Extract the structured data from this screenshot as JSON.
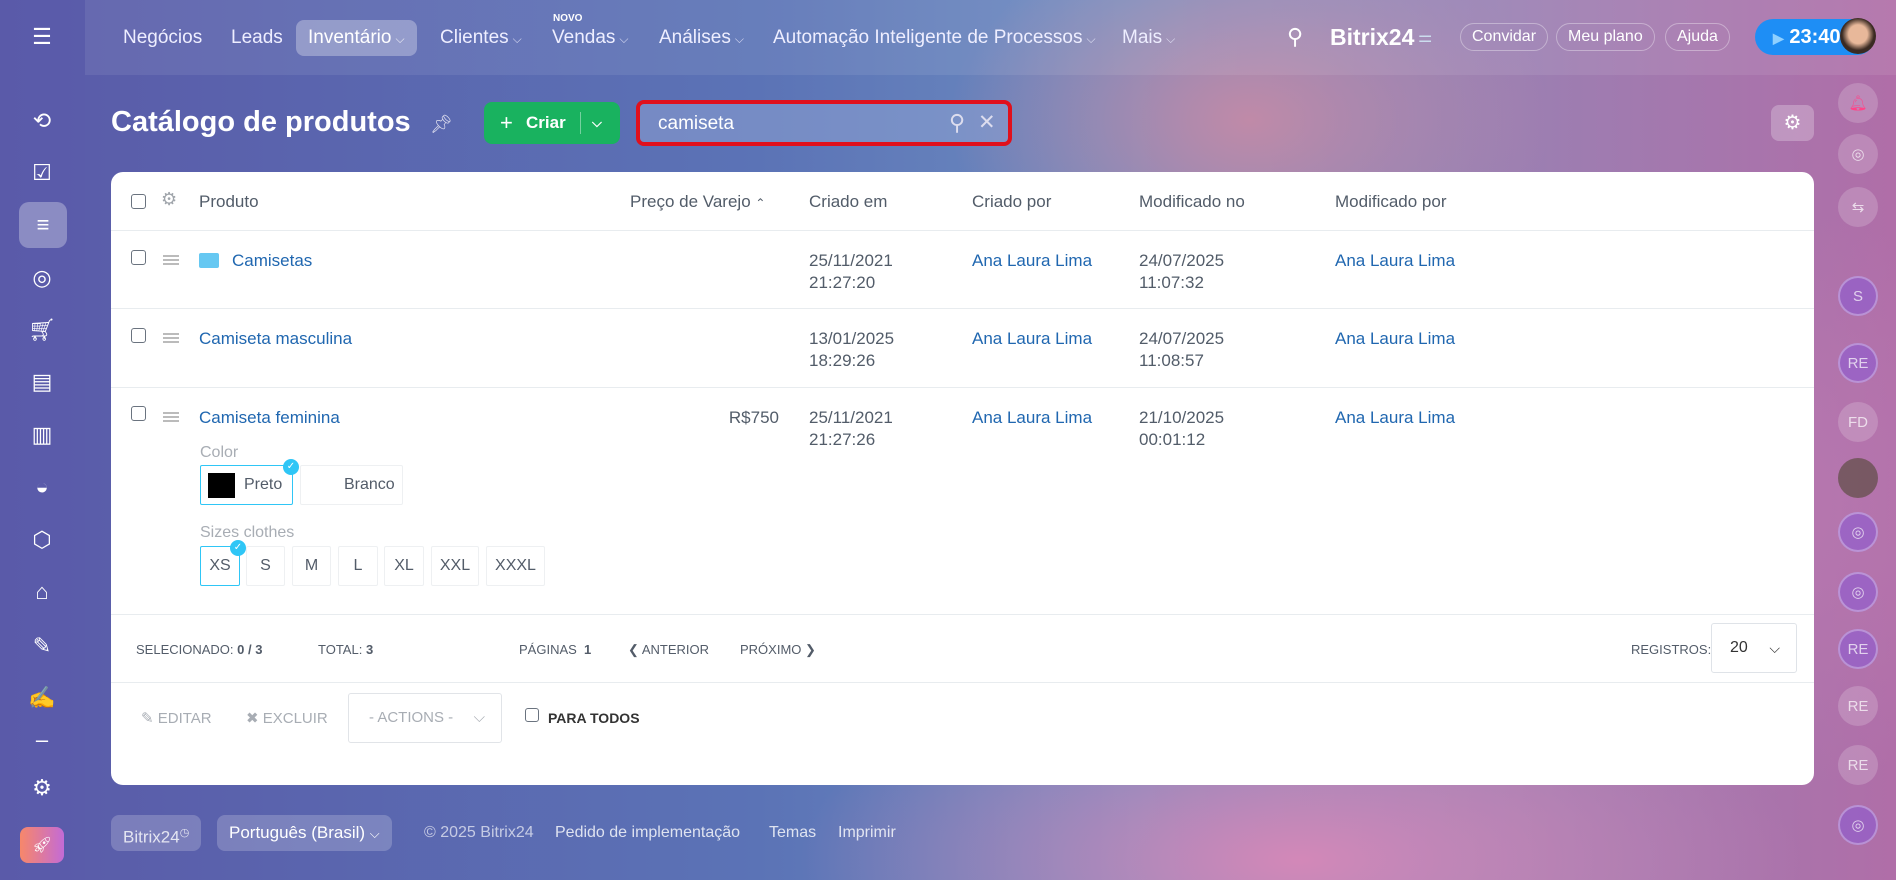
{
  "topnav": {
    "items": [
      {
        "label": "Negócios"
      },
      {
        "label": "Leads"
      },
      {
        "label": "Inventário",
        "active": true
      },
      {
        "label": "Clientes"
      },
      {
        "label": "Vendas",
        "badge": "NOVO"
      },
      {
        "label": "Análises"
      },
      {
        "label": "Automação Inteligente de Processos"
      },
      {
        "label": "Mais"
      }
    ],
    "brand": "Bitrix24",
    "invite": "Convidar",
    "plan": "Meu plano",
    "help": "Ajuda",
    "timer": "23:40"
  },
  "page": {
    "title": "Catálogo de produtos",
    "create_label": "Criar",
    "search_value": "camiseta"
  },
  "table": {
    "columns": [
      "Produto",
      "Preço de Varejo",
      "Criado em",
      "Criado por",
      "Modificado no",
      "Modificado por"
    ],
    "rows": [
      {
        "name": "Camisetas",
        "is_folder": true,
        "price": "",
        "created": [
          "25/11/2021",
          "21:27:20"
        ],
        "created_by": "Ana Laura Lima",
        "modified": [
          "24/07/2025",
          "11:07:32"
        ],
        "modified_by": "Ana Laura Lima"
      },
      {
        "name": "Camiseta masculina",
        "price": "",
        "created": [
          "13/01/2025",
          "18:29:26"
        ],
        "created_by": "Ana Laura Lima",
        "modified": [
          "24/07/2025",
          "11:08:57"
        ],
        "modified_by": "Ana Laura Lima"
      },
      {
        "name": "Camiseta feminina",
        "price": "R$750",
        "created": [
          "25/11/2021",
          "21:27:26"
        ],
        "created_by": "Ana Laura Lima",
        "modified": [
          "21/10/2025",
          "00:01:12"
        ],
        "modified_by": "Ana Laura Lima",
        "color_label": "Color",
        "colors": [
          {
            "label": "Preto",
            "swatch": "#000000",
            "selected": true
          },
          {
            "label": "Branco",
            "swatch": "#ffffff"
          }
        ],
        "size_label": "Sizes clothes",
        "sizes": [
          "XS",
          "S",
          "M",
          "L",
          "XL",
          "XXL",
          "XXXL"
        ],
        "selected_size": "XS"
      }
    ]
  },
  "footer": {
    "selected_label": "SELECIONADO:",
    "selected_value": "0 / 3",
    "total_label": "TOTAL:",
    "total_value": "3",
    "pages_label": "PÁGINAS",
    "page": "1",
    "prev": "ANTERIOR",
    "next": "PRÓXIMO",
    "records_label": "REGISTROS:",
    "records_value": "20"
  },
  "actions": {
    "edit": "EDITAR",
    "delete": "EXCLUIR",
    "actions_select": "- ACTIONS -",
    "for_all": "PARA TODOS"
  },
  "pagefooter": {
    "brand": "Bitrix24",
    "language": "Português (Brasil)",
    "copyright": "© 2025 Bitrix24",
    "impl": "Pedido de implementação",
    "themes": "Temas",
    "print": "Imprimir"
  },
  "rightbar": {
    "avatars": [
      "S",
      "RE",
      "FD",
      "",
      "",
      "",
      "RE",
      "RE",
      "RE",
      ""
    ]
  }
}
